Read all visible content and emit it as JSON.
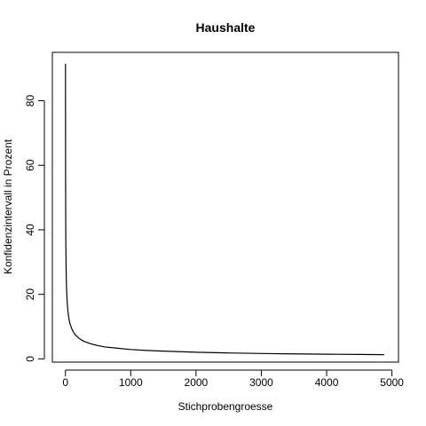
{
  "chart_data": {
    "type": "line",
    "title": "Haushalte",
    "xlabel": "Stichprobengroesse",
    "ylabel": "Konfidenzintervall in Prozent",
    "xlim": [
      -200,
      5100
    ],
    "ylim": [
      -1,
      95
    ],
    "x_ticks": [
      0,
      1000,
      2000,
      3000,
      4000,
      5000
    ],
    "x_tick_labels": [
      "0",
      "1000",
      "2000",
      "3000",
      "4000",
      "5000"
    ],
    "y_ticks": [
      0,
      20,
      40,
      60,
      80
    ],
    "y_tick_labels": [
      "0",
      "20",
      "40",
      "60",
      "80"
    ],
    "grid": false,
    "legend": "none",
    "series": [
      {
        "color": "#000000",
        "x": [
          1,
          2,
          3,
          4,
          5,
          6,
          8,
          10,
          12,
          15,
          20,
          25,
          30,
          40,
          50,
          60,
          75,
          100,
          125,
          150,
          200,
          250,
          300,
          400,
          500,
          600,
          750,
          1000,
          1250,
          1500,
          2000,
          2500,
          3000,
          3500,
          4000,
          4500,
          4880
        ],
        "y": [
          91.5,
          65,
          53,
          46,
          41,
          37.5,
          32.5,
          29,
          26.5,
          23.5,
          20.5,
          18.3,
          16.7,
          14.5,
          13,
          11.8,
          10.6,
          9.2,
          8.2,
          7.5,
          6.5,
          5.8,
          5.3,
          4.6,
          4.1,
          3.7,
          3.4,
          2.9,
          2.6,
          2.4,
          2.05,
          1.84,
          1.67,
          1.55,
          1.45,
          1.37,
          1.31
        ]
      }
    ]
  }
}
